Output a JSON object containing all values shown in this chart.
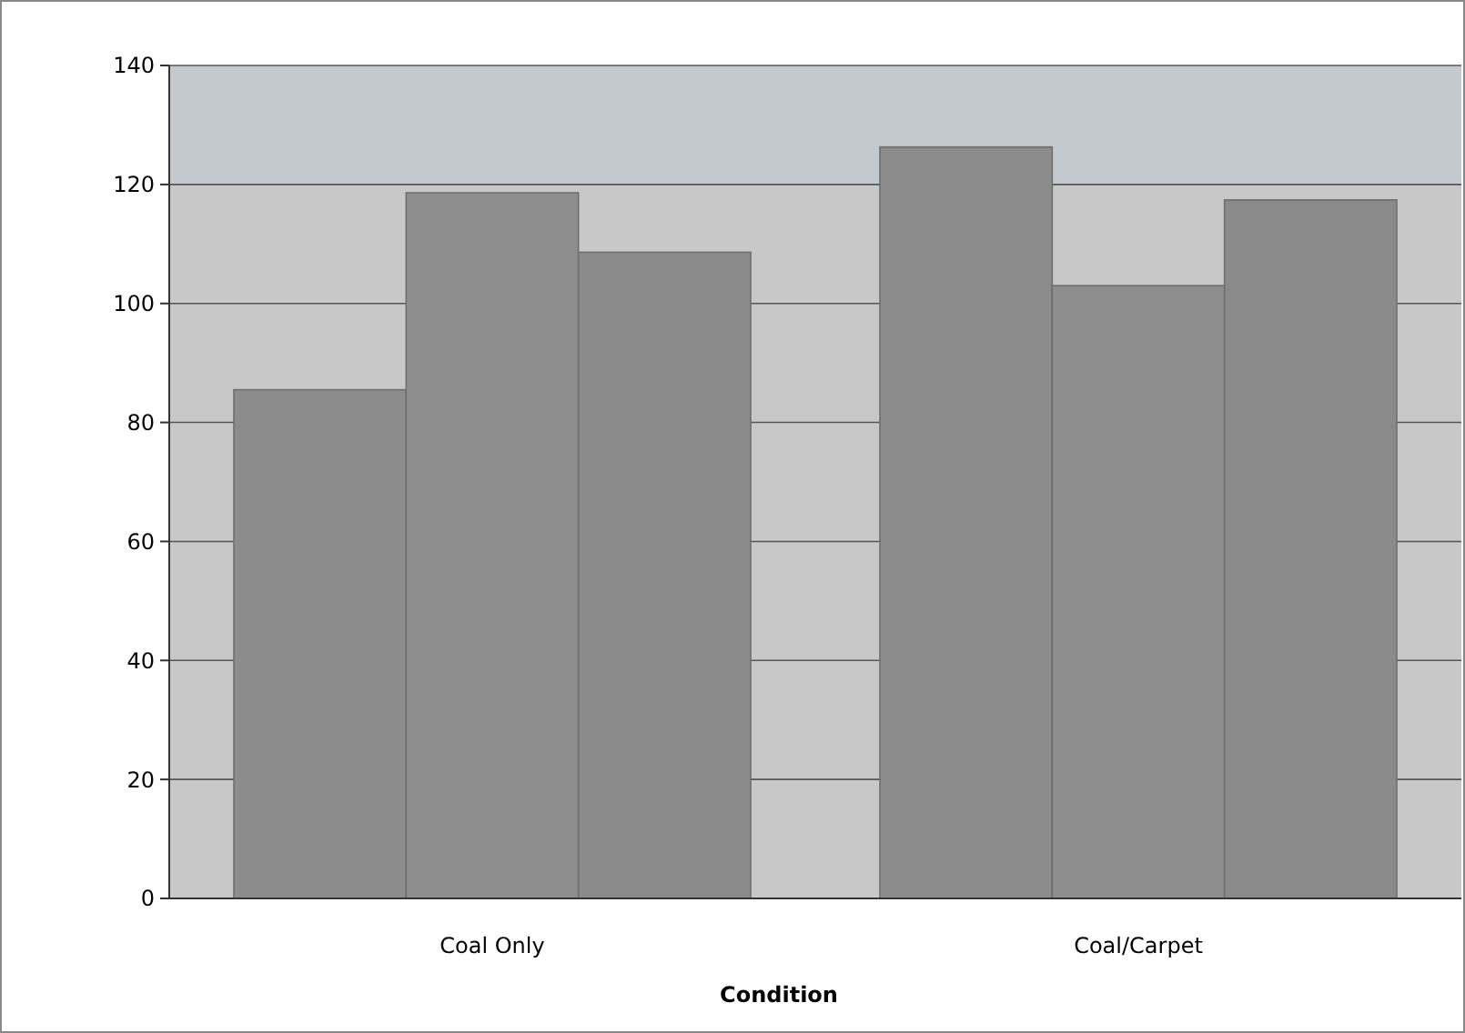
{
  "chart_data": {
    "type": "bar",
    "xlabel": "Condition",
    "categories": [
      "Coal Only",
      "Coal/Carpet"
    ],
    "series": [
      {
        "color": "#8c8c8c",
        "values": [
          85.5,
          126.3
        ]
      },
      {
        "color": "#8e8e8e",
        "values": [
          118.6,
          103
        ]
      },
      {
        "color": "#8a8a8a",
        "values": [
          108.6,
          117.4
        ]
      }
    ],
    "ylim": [
      0,
      140
    ],
    "yticks": [
      0,
      20,
      40,
      60,
      80,
      100,
      120,
      140
    ],
    "grid": "y",
    "bands": [
      {
        "axis": "y",
        "from": 120,
        "to": 140,
        "color": "#c3c9ce"
      }
    ]
  }
}
